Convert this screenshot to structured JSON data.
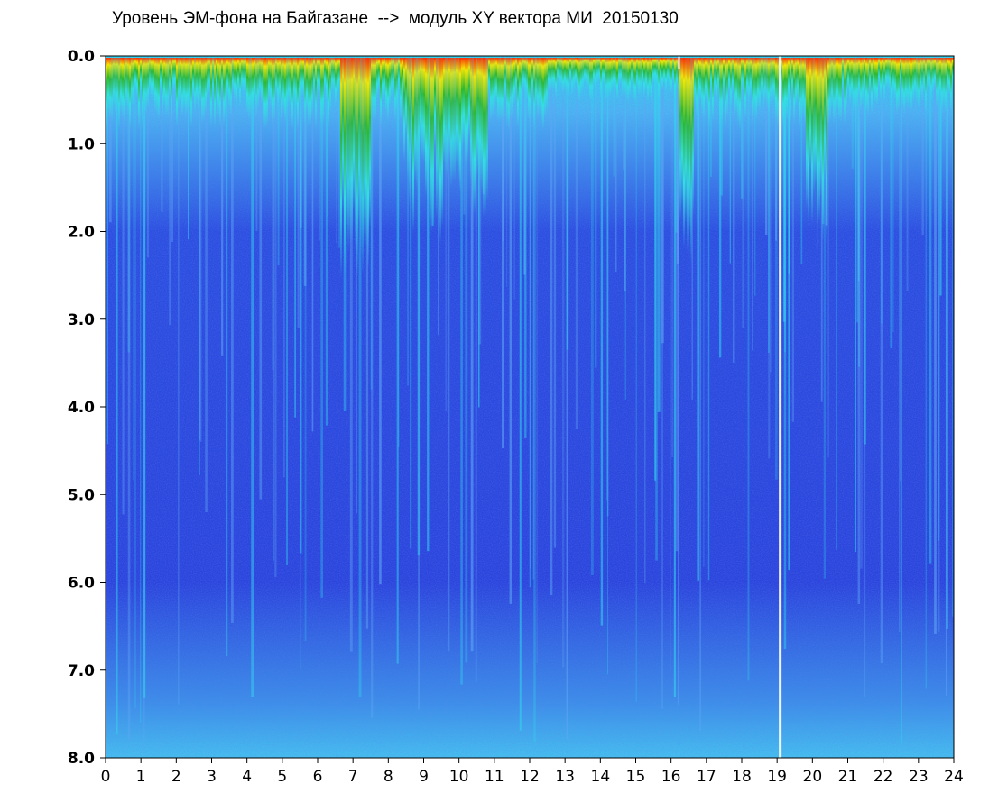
{
  "chart_data": {
    "type": "heatmap",
    "title": "Уровень ЭМ-фона на Байгазане  -->  модуль XY вектора МИ  20150130",
    "x_ticks": [
      "0",
      "1",
      "2",
      "3",
      "4",
      "5",
      "6",
      "7",
      "8",
      "9",
      "10",
      "11",
      "12",
      "13",
      "14",
      "15",
      "16",
      "17",
      "18",
      "19",
      "20",
      "21",
      "22",
      "23",
      "24"
    ],
    "y_ticks": [
      "0.0",
      "1.0",
      "2.0",
      "3.0",
      "4.0",
      "5.0",
      "6.0",
      "7.0",
      "8.0"
    ],
    "xlim": [
      0,
      24
    ],
    "ylim": [
      0.0,
      8.0
    ],
    "y_inverted": true,
    "colors": {
      "background_low": "#1a1fd6",
      "mid": "#2fe0e8",
      "green": "#17a317",
      "yellow": "#f2f200",
      "red": "#ff2200",
      "gap_white": "#ffffff"
    },
    "grid": false
  }
}
